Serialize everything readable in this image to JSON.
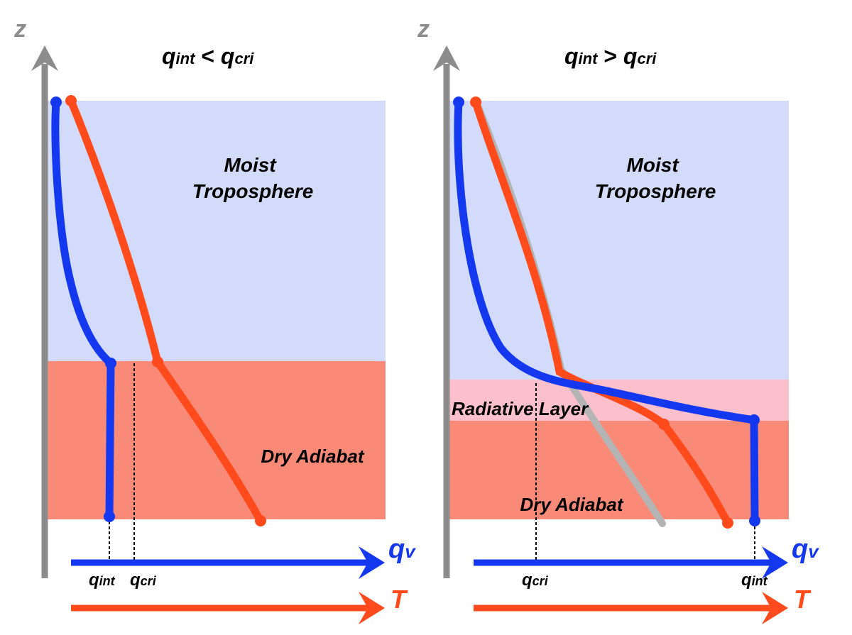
{
  "colors": {
    "moist": "#d2dcfa",
    "dry": "#fa8a78",
    "radiative": "#fcc0cc",
    "blue": "#1438f0",
    "red": "#ff4a1c",
    "gray": "#8c8c8c",
    "lightgray": "#b4b4b4"
  },
  "left_panel": {
    "z_label": "z",
    "title": {
      "q": "q",
      "sub1": "int",
      "op": " < ",
      "q2": "q",
      "sub2": "cri"
    },
    "moist_label": [
      "Moist",
      "Troposphere"
    ],
    "dry_label": "Dry Adiabat",
    "qv_axis": {
      "q": "q",
      "sub": "v"
    },
    "t_axis": "T",
    "tick_qint": {
      "q": "q",
      "sub": "int"
    },
    "tick_qcri": {
      "q": "q",
      "sub": "cri"
    }
  },
  "right_panel": {
    "z_label": "z",
    "title": {
      "q": "q",
      "sub1": "int",
      "op": " > ",
      "q2": "q",
      "sub2": "cri"
    },
    "moist_label": [
      "Moist",
      "Troposphere"
    ],
    "radiative_label": "Radiative Layer",
    "dry_label": "Dry Adiabat",
    "qv_axis": {
      "q": "q",
      "sub": "v"
    },
    "t_axis": "T",
    "tick_qcri": {
      "q": "q",
      "sub": "cri"
    },
    "tick_qint": {
      "q": "q",
      "sub": "int"
    }
  }
}
